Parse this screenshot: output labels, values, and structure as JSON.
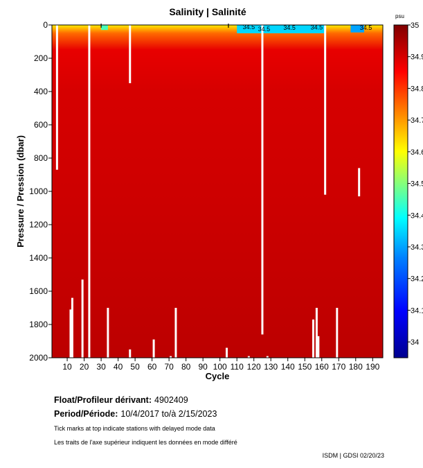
{
  "chart_data": {
    "type": "heatmap",
    "title": "Salinity | Salinité",
    "xlabel": "Cycle",
    "ylabel": "Pressure / Pression (dbar)",
    "xlim": [
      1,
      196
    ],
    "ylim": [
      2000,
      0
    ],
    "x_ticks": [
      10,
      20,
      30,
      40,
      50,
      60,
      70,
      80,
      90,
      100,
      110,
      120,
      130,
      140,
      150,
      160,
      170,
      180,
      190
    ],
    "y_ticks": [
      0,
      200,
      400,
      600,
      800,
      1000,
      1200,
      1400,
      1600,
      1800,
      2000
    ],
    "colorbar": {
      "label": "psu",
      "ticks": [
        "35",
        "34.9",
        "34.8",
        "34.7",
        "34.6",
        "34.5",
        "34.4",
        "34.3",
        "34.2",
        "34.1",
        "34"
      ],
      "range": [
        33.95,
        35.0
      ]
    },
    "contour_labels": [
      {
        "x": 117,
        "y": 8,
        "text": "34.5"
      },
      {
        "x": 126,
        "y": 20,
        "text": "34.5"
      },
      {
        "x": 141,
        "y": 12,
        "text": "34.5"
      },
      {
        "x": 157,
        "y": 10,
        "text": "34.5"
      },
      {
        "x": 186,
        "y": 12,
        "text": "34.5"
      }
    ],
    "delayed_mode_ticks": [
      30,
      105
    ],
    "salinity_profile": [
      {
        "p": 0,
        "s": 34.62
      },
      {
        "p": 50,
        "s": 34.75
      },
      {
        "p": 150,
        "s": 34.88
      },
      {
        "p": 400,
        "s": 34.9
      },
      {
        "p": 1000,
        "s": 34.91
      },
      {
        "p": 2000,
        "s": 34.93
      }
    ],
    "low_salinity_patches": [
      {
        "x1": 30,
        "x2": 34,
        "pmax": 30,
        "s": 34.45
      },
      {
        "x1": 110,
        "x2": 162,
        "pmax": 50,
        "s": 34.35
      },
      {
        "x1": 177,
        "x2": 185,
        "pmax": 45,
        "s": 34.3
      }
    ],
    "missing_profiles": [
      {
        "cycle": 4,
        "from": 0,
        "to": 870
      },
      {
        "cycle": 12,
        "from": 1710,
        "to": 2000
      },
      {
        "cycle": 13,
        "from": 1640,
        "to": 2000
      },
      {
        "cycle": 19,
        "from": 1530,
        "to": 2000
      },
      {
        "cycle": 23,
        "from": 0,
        "to": 2000
      },
      {
        "cycle": 34,
        "from": 1700,
        "to": 2000
      },
      {
        "cycle": 47,
        "from": 0,
        "to": 350
      },
      {
        "cycle": 47,
        "from": 1950,
        "to": 2000
      },
      {
        "cycle": 61,
        "from": 1890,
        "to": 2000
      },
      {
        "cycle": 71,
        "from": 1990,
        "to": 2000
      },
      {
        "cycle": 74,
        "from": 1700,
        "to": 2000
      },
      {
        "cycle": 104,
        "from": 1940,
        "to": 2000
      },
      {
        "cycle": 117,
        "from": 1990,
        "to": 2000
      },
      {
        "cycle": 125,
        "from": 0,
        "to": 1860
      },
      {
        "cycle": 128,
        "from": 1990,
        "to": 2000
      },
      {
        "cycle": 155,
        "from": 1770,
        "to": 2000
      },
      {
        "cycle": 157,
        "from": 1700,
        "to": 2000
      },
      {
        "cycle": 158,
        "from": 1870,
        "to": 2000
      },
      {
        "cycle": 162,
        "from": 0,
        "to": 1020
      },
      {
        "cycle": 169,
        "from": 1700,
        "to": 2000
      },
      {
        "cycle": 182,
        "from": 860,
        "to": 1030
      }
    ]
  },
  "info": {
    "float_label": "Float/Profileur dérivant:",
    "float_value": "4902409",
    "period_label": "Period/Période:",
    "period_value": "10/4/2017  to/à  2/15/2023",
    "note_en": "Tick marks at top indicate stations with delayed mode data",
    "note_fr": "Les traits de l'axe supérieur indiquent les données en mode différé",
    "footer": "ISDM | GDSI  02/20/23"
  },
  "colors": {
    "deep": "#cc1a0a",
    "mid": "#ee2812",
    "missing": "#ffffff"
  }
}
